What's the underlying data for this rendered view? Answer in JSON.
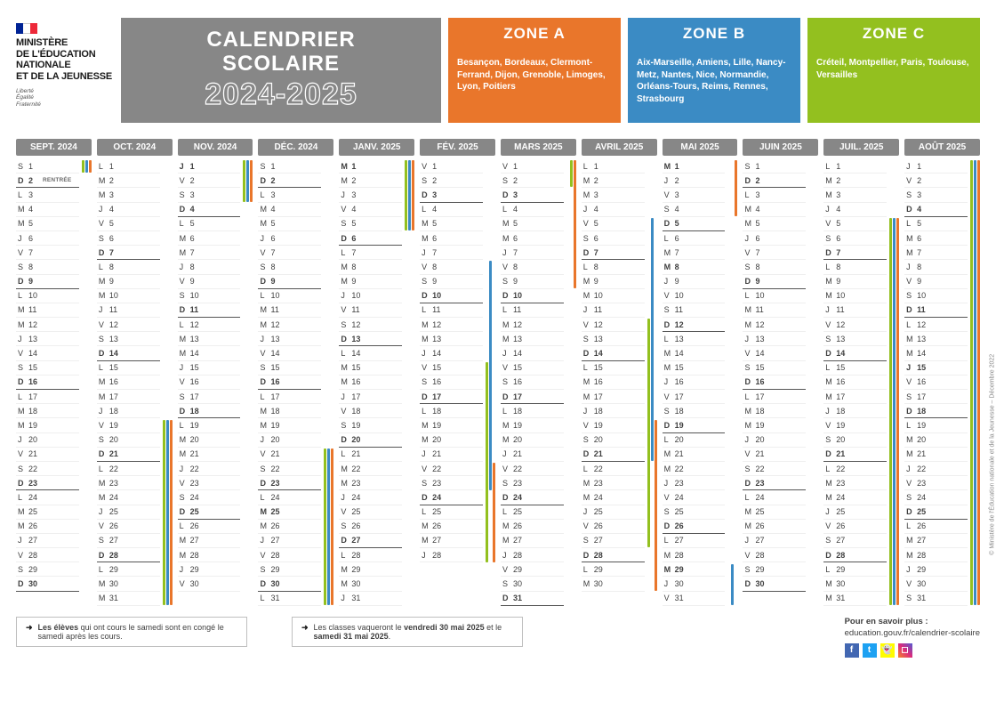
{
  "colors": {
    "gray": "#878787",
    "zoneA": "#e9762b",
    "zoneA_body": "#e9762b",
    "zoneB": "#3b8bc4",
    "zoneC": "#93c01f",
    "flag_blue": "#002395",
    "flag_white": "#ffffff",
    "flag_red": "#ed2939",
    "fb": "#4267b2",
    "tw": "#1da1f2",
    "sc": "#fffc00",
    "ig1": "#f58529",
    "ig2": "#dd2a7b",
    "ig3": "#515bd4"
  },
  "logo": {
    "line1": "MINISTÈRE",
    "line2": "DE L'ÉDUCATION",
    "line3": "NATIONALE",
    "line4": "ET DE LA JEUNESSE",
    "motto1": "Liberté",
    "motto2": "Égalité",
    "motto3": "Fraternité"
  },
  "title": {
    "t1a": "CALENDRIER",
    "t1b": "SCOLAIRE",
    "t2": "2024-2025"
  },
  "zones": {
    "A": {
      "name": "ZONE A",
      "cities": "Besançon, Bordeaux, Clermont-Ferrand, Dijon, Grenoble, Limoges, Lyon, Poitiers"
    },
    "B": {
      "name": "ZONE B",
      "cities": "Aix-Marseille, Amiens, Lille, Nancy-Metz, Nantes, Nice, Normandie, Orléans-Tours, Reims, Rennes, Strasbourg"
    },
    "C": {
      "name": "ZONE C",
      "cities": "Créteil, Montpellier, Paris, Toulouse, Versailles"
    }
  },
  "footerNotes": {
    "n1_bold": "Les élèves",
    "n1_rest": " qui ont cours le samedi sont en congé le samedi après les cours.",
    "n2_pre": "Les classes vaqueront le ",
    "n2_b1": "vendredi 30 mai 2025",
    "n2_mid": " et le ",
    "n2_b2": "samedi 31 mai 2025",
    "n2_end": "."
  },
  "more": {
    "title": "Pour en savoir plus :",
    "url": "education.gouv.fr/calendrier-scolaire"
  },
  "credit": "© Ministère de l'Éducation nationale et de la Jeunesse – Décembre 2022",
  "dayLetters": [
    "L",
    "M",
    "M",
    "J",
    "V",
    "S",
    "D"
  ],
  "months": [
    {
      "name": "SEPT. 2024",
      "start": 6,
      "len": 30,
      "holidays": [],
      "stripes": [
        {
          "z": "A",
          "from": 1,
          "to": 1
        },
        {
          "z": "B",
          "from": 1,
          "to": 1
        },
        {
          "z": "C",
          "from": 1,
          "to": 1
        }
      ],
      "notes": {
        "2": "RENTRÉE"
      }
    },
    {
      "name": "OCT. 2024",
      "start": 1,
      "len": 31,
      "holidays": [],
      "stripes": [
        {
          "z": "A",
          "from": 19,
          "to": 31
        },
        {
          "z": "B",
          "from": 19,
          "to": 31
        },
        {
          "z": "C",
          "from": 19,
          "to": 31
        }
      ]
    },
    {
      "name": "NOV. 2024",
      "start": 4,
      "len": 30,
      "holidays": [
        1,
        11
      ],
      "stripes": [
        {
          "z": "A",
          "from": 1,
          "to": 3
        },
        {
          "z": "B",
          "from": 1,
          "to": 3
        },
        {
          "z": "C",
          "from": 1,
          "to": 3
        }
      ]
    },
    {
      "name": "DÉC. 2024",
      "start": 6,
      "len": 31,
      "holidays": [
        25
      ],
      "stripes": [
        {
          "z": "A",
          "from": 21,
          "to": 31
        },
        {
          "z": "B",
          "from": 21,
          "to": 31
        },
        {
          "z": "C",
          "from": 21,
          "to": 31
        }
      ]
    },
    {
      "name": "JANV. 2025",
      "start": 2,
      "len": 31,
      "holidays": [
        1
      ],
      "stripes": [
        {
          "z": "A",
          "from": 1,
          "to": 5
        },
        {
          "z": "B",
          "from": 1,
          "to": 5
        },
        {
          "z": "C",
          "from": 1,
          "to": 5
        }
      ]
    },
    {
      "name": "FÉV. 2025",
      "start": 5,
      "len": 28,
      "holidays": [],
      "stripes": [
        {
          "z": "B",
          "from": 8,
          "to": 23
        },
        {
          "z": "C",
          "from": 15,
          "to": 28
        },
        {
          "z": "A",
          "from": 22,
          "to": 28
        }
      ]
    },
    {
      "name": "MARS 2025",
      "start": 5,
      "len": 31,
      "holidays": [],
      "stripes": [
        {
          "z": "A",
          "from": 1,
          "to": 9
        },
        {
          "z": "C",
          "from": 1,
          "to": 2
        }
      ]
    },
    {
      "name": "AVRIL 2025",
      "start": 1,
      "len": 30,
      "holidays": [
        21
      ],
      "stripes": [
        {
          "z": "B",
          "from": 5,
          "to": 21
        },
        {
          "z": "C",
          "from": 12,
          "to": 27
        },
        {
          "z": "A",
          "from": 19,
          "to": 30
        }
      ]
    },
    {
      "name": "MAI 2025",
      "start": 3,
      "len": 31,
      "holidays": [
        1,
        8,
        29
      ],
      "stripes": [
        {
          "z": "A",
          "from": 1,
          "to": 4
        },
        {
          "z": "B",
          "from": 29,
          "to": 31
        }
      ]
    },
    {
      "name": "JUIN 2025",
      "start": 6,
      "len": 30,
      "holidays": [
        9
      ],
      "stripes": []
    },
    {
      "name": "JUIL. 2025",
      "start": 1,
      "len": 31,
      "holidays": [
        14
      ],
      "stripes": [
        {
          "z": "A",
          "from": 5,
          "to": 31
        },
        {
          "z": "B",
          "from": 5,
          "to": 31
        },
        {
          "z": "C",
          "from": 5,
          "to": 31
        }
      ]
    },
    {
      "name": "AOÛT 2025",
      "start": 4,
      "len": 31,
      "holidays": [
        15
      ],
      "stripes": [
        {
          "z": "A",
          "from": 1,
          "to": 31
        },
        {
          "z": "B",
          "from": 1,
          "to": 31
        },
        {
          "z": "C",
          "from": 1,
          "to": 31
        }
      ]
    }
  ]
}
